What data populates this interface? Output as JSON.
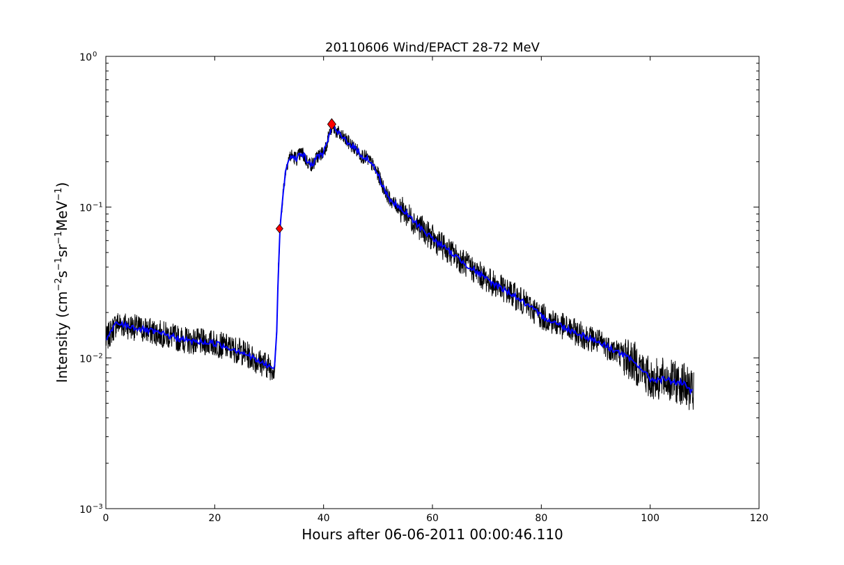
{
  "chart_data": {
    "type": "line",
    "title": "20110606 Wind/EPACT 28-72 MeV",
    "xlabel": "Hours after 06-06-2011 00:00:46.110",
    "ylabel_parts": [
      "Intensity (cm",
      "−2",
      "s",
      "−1",
      "sr",
      "−1",
      "MeV",
      "−1",
      ")"
    ],
    "xlim": [
      0,
      120
    ],
    "ylim": [
      0.001,
      1
    ],
    "yscale": "log",
    "x_ticks": [
      0,
      20,
      40,
      60,
      80,
      100,
      120
    ],
    "x_tick_labels": [
      "0",
      "20",
      "40",
      "60",
      "80",
      "100",
      "120"
    ],
    "y_ticks": [
      0.001,
      0.01,
      0.1,
      1
    ],
    "y_tick_labels": [
      {
        "base": "10",
        "exp": "−3"
      },
      {
        "base": "10",
        "exp": "−2"
      },
      {
        "base": "10",
        "exp": "−1"
      },
      {
        "base": "10",
        "exp": "0"
      }
    ],
    "grid": false,
    "series": [
      {
        "role": "raw",
        "color": "#000000",
        "x": [
          0,
          1,
          2,
          5,
          10,
          15,
          20,
          25,
          28,
          30,
          31,
          31.4,
          31.7,
          32,
          32.5,
          33,
          33.5,
          34,
          35,
          36,
          37,
          38,
          39,
          40,
          40.5,
          41,
          41.5,
          42,
          43,
          44,
          45,
          46,
          47,
          48,
          49,
          50,
          51,
          52,
          53,
          55,
          57,
          60,
          65,
          70,
          75,
          80,
          85,
          90,
          95,
          98,
          100,
          103,
          105,
          106,
          107,
          108
        ],
        "y": [
          0.013,
          0.015,
          0.017,
          0.016,
          0.0145,
          0.013,
          0.0125,
          0.011,
          0.0095,
          0.0088,
          0.0085,
          0.015,
          0.04,
          0.07,
          0.12,
          0.17,
          0.21,
          0.22,
          0.21,
          0.23,
          0.2,
          0.19,
          0.22,
          0.23,
          0.26,
          0.3,
          0.34,
          0.33,
          0.3,
          0.28,
          0.26,
          0.24,
          0.22,
          0.21,
          0.19,
          0.165,
          0.135,
          0.115,
          0.105,
          0.092,
          0.078,
          0.062,
          0.045,
          0.033,
          0.026,
          0.019,
          0.0155,
          0.013,
          0.0105,
          0.0088,
          0.0072,
          0.0072,
          0.0068,
          0.0068,
          0.0062,
          0.0058
        ],
        "noise_note": "scatter ±",
        "noise_amplitude": [
          0.18,
          0.1
        ]
      },
      {
        "role": "smoothed",
        "color": "#0000ff",
        "x": [
          0,
          1,
          2,
          5,
          10,
          15,
          20,
          25,
          28,
          30,
          31,
          31.4,
          31.7,
          32,
          32.5,
          33,
          33.5,
          34,
          35,
          36,
          37,
          38,
          39,
          40,
          40.5,
          41,
          41.5,
          42,
          43,
          44,
          45,
          46,
          47,
          48,
          49,
          50,
          51,
          52,
          53,
          55,
          57,
          60,
          65,
          70,
          75,
          80,
          85,
          90,
          95,
          98,
          100,
          103,
          105,
          106,
          107,
          108
        ],
        "y": [
          0.013,
          0.015,
          0.017,
          0.016,
          0.0145,
          0.013,
          0.0125,
          0.011,
          0.0095,
          0.0088,
          0.0085,
          0.015,
          0.04,
          0.07,
          0.12,
          0.17,
          0.21,
          0.22,
          0.21,
          0.23,
          0.2,
          0.19,
          0.22,
          0.23,
          0.26,
          0.3,
          0.34,
          0.33,
          0.3,
          0.28,
          0.26,
          0.24,
          0.22,
          0.21,
          0.19,
          0.165,
          0.135,
          0.115,
          0.105,
          0.092,
          0.078,
          0.062,
          0.045,
          0.033,
          0.026,
          0.019,
          0.0155,
          0.013,
          0.0105,
          0.0088,
          0.0072,
          0.0072,
          0.0068,
          0.0068,
          0.0062,
          0.0058
        ]
      }
    ],
    "markers": [
      {
        "name": "onset",
        "x": 31.9,
        "y": 0.072,
        "color": "#ff0000",
        "shape": "diamond",
        "size": "small"
      },
      {
        "name": "peak",
        "x": 41.5,
        "y": 0.355,
        "color": "#ff0000",
        "shape": "diamond",
        "size": "large"
      }
    ]
  }
}
